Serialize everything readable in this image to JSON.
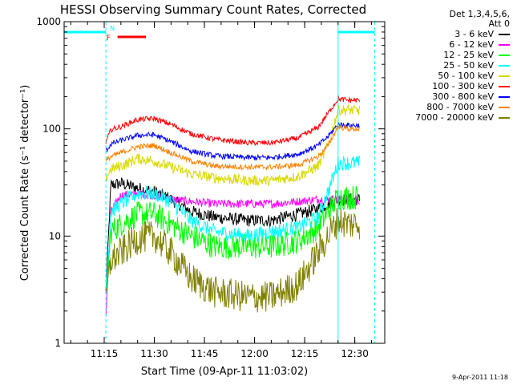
{
  "chart_data": {
    "type": "line",
    "title": "HESSI Observing Summary Count Rates, Corrected",
    "xlabel": "Start Time (09-Apr-11 11:03:02)",
    "ylabel": "Corrected Count Rate (s⁻¹ detector⁻¹)",
    "y_scale": "log",
    "ylim": [
      1,
      1000
    ],
    "ytick_labels": [
      "1",
      "10",
      "100",
      "1000"
    ],
    "xlim": [
      "11:03:02",
      "12:39:00"
    ],
    "xtick_labels": [
      "11:15",
      "11:30",
      "11:45",
      "12:00",
      "12:15",
      "12:30"
    ],
    "xtick_minutes": [
      12,
      27,
      42,
      57,
      72,
      87
    ],
    "data_start_minute": 12.5,
    "data_end_minute": 88.5,
    "x_knots_minutes": [
      12.5,
      14,
      17,
      22,
      27,
      32,
      38,
      45,
      55,
      62,
      70,
      76,
      79,
      82,
      85,
      88.5
    ],
    "series": [
      {
        "name": "3 - 6 keV",
        "color": "#000000",
        "noise": 0.06,
        "values": [
          3,
          30,
          31,
          28,
          26,
          22,
          17,
          15,
          14,
          14,
          16,
          18,
          20,
          22,
          22,
          22
        ]
      },
      {
        "name": "6 - 12 keV",
        "color": "#ff00ff",
        "noise": 0.04,
        "values": [
          1.8,
          17,
          24,
          25,
          24,
          22,
          21,
          20,
          20,
          20,
          21,
          22,
          22,
          22,
          22,
          21
        ]
      },
      {
        "name": "12 - 25 keV",
        "color": "#00ff00",
        "noise": 0.12,
        "values": [
          2.5,
          11,
          13,
          16,
          16,
          13,
          10,
          8,
          8,
          8,
          9,
          12,
          17,
          23,
          23,
          23
        ]
      },
      {
        "name": "25 - 50 keV",
        "color": "#00ffff",
        "noise": 0.07,
        "values": [
          3,
          17,
          20,
          25,
          25,
          21,
          14,
          11,
          10,
          11,
          12,
          15,
          26,
          48,
          48,
          48
        ]
      },
      {
        "name": "50 - 100 keV",
        "color": "#d9d900",
        "noise": 0.05,
        "values": [
          35,
          42,
          45,
          53,
          50,
          44,
          38,
          35,
          33,
          33,
          36,
          45,
          70,
          150,
          150,
          148
        ]
      },
      {
        "name": "100 - 300 keV",
        "color": "#ff0000",
        "noise": 0.025,
        "values": [
          75,
          98,
          105,
          122,
          125,
          110,
          90,
          80,
          74,
          74,
          82,
          103,
          140,
          190,
          185,
          185
        ]
      },
      {
        "name": "300 - 800 keV",
        "color": "#0000ff",
        "noise": 0.025,
        "values": [
          62,
          72,
          78,
          87,
          88,
          76,
          62,
          56,
          54,
          54,
          58,
          70,
          85,
          110,
          108,
          108
        ]
      },
      {
        "name": "800 - 7000 keV",
        "color": "#ff8000",
        "noise": 0.025,
        "values": [
          50,
          55,
          60,
          68,
          70,
          60,
          50,
          45,
          44,
          44,
          46,
          55,
          70,
          105,
          100,
          100
        ]
      },
      {
        "name": "7000 - 20000 keV",
        "color": "#808000",
        "noise": 0.15,
        "values": [
          2.5,
          6,
          7,
          9.5,
          10,
          7,
          4,
          3,
          2.7,
          2.7,
          3.5,
          7,
          10,
          14,
          13,
          13
        ]
      }
    ],
    "attenuator_bar": {
      "color": "#00ffff",
      "value": 800,
      "segments": [
        [
          0,
          12.5
        ],
        [
          82,
          93
        ]
      ]
    },
    "flare_flag": {
      "label": "F",
      "color": "#ff0000",
      "value": 800,
      "range": [
        16,
        24.5
      ]
    },
    "night_flag": {
      "label": "N",
      "color": "#00ffff"
    },
    "event_lines_minutes": [
      0,
      12.5,
      82,
      93
    ],
    "event_lines_dashed": [
      false,
      true,
      false,
      true
    ],
    "event_line_color": "#00ffff"
  },
  "legend": {
    "header_lines": [
      "Det 1,3,4,5,6,",
      "Att 0"
    ],
    "placement": "right"
  },
  "timestamp": "9-Apr-2011 11:18"
}
